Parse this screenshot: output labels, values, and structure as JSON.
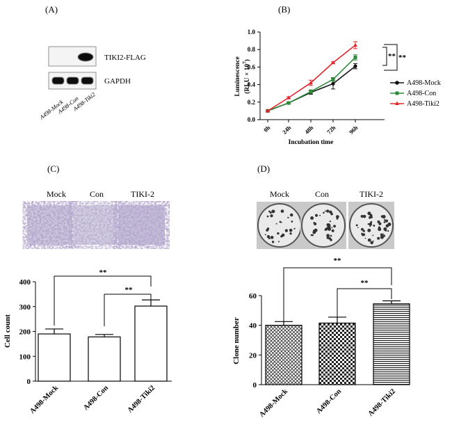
{
  "panels": {
    "A": {
      "label": "(A)",
      "bands": [
        "TIKI2-FLAG",
        "GAPDH"
      ],
      "lanes": [
        "A498-Mock",
        "A498-Con",
        "A498-Tiki2"
      ]
    },
    "B": {
      "label": "(B)"
    },
    "C": {
      "label": "(C)",
      "image_labels": [
        "Mock",
        "Con",
        "TIKI-2"
      ]
    },
    "D": {
      "label": "(D)",
      "image_labels": [
        "Mock",
        "Con",
        "TIKI-2"
      ]
    }
  },
  "chart_data": [
    {
      "id": "B",
      "type": "line",
      "xlabel": "Incubation time",
      "ylabel": "Luminescence",
      "ylabel2": "(RLU × 10",
      "ylabel_exp": "7",
      "ylabel_end": ")",
      "categories": [
        "0h",
        "24h",
        "48h",
        "72h",
        "96h"
      ],
      "ylim": [
        0,
        1.0
      ],
      "yticks": [
        "0.0",
        "0.2",
        "0.4",
        "0.6",
        "0.8",
        "1.0"
      ],
      "series": [
        {
          "name": "A498-Mock",
          "color": "#111111",
          "marker": "circle",
          "values": [
            0.1,
            0.19,
            0.31,
            0.41,
            0.61
          ],
          "errors": [
            0.01,
            0.01,
            0.02,
            0.06,
            0.03
          ]
        },
        {
          "name": "A498-Con",
          "color": "#2e8b3a",
          "marker": "square",
          "values": [
            0.1,
            0.19,
            0.32,
            0.46,
            0.71
          ],
          "errors": [
            0.01,
            0.01,
            0.02,
            0.02,
            0.03
          ]
        },
        {
          "name": "A498-Tiki2",
          "color": "#e0262b",
          "marker": "triangle",
          "values": [
            0.1,
            0.25,
            0.42,
            0.65,
            0.85
          ],
          "errors": [
            0.01,
            0.01,
            0.03,
            0.01,
            0.04
          ]
        }
      ],
      "significance": [
        "**",
        "**"
      ]
    },
    {
      "id": "C",
      "type": "bar",
      "ylabel": "Cell count",
      "categories": [
        "A498-Mock",
        "A498-Con",
        "A498-Tiki2"
      ],
      "values": [
        190,
        178,
        302
      ],
      "errors": [
        20,
        10,
        25
      ],
      "ylim": [
        0,
        400
      ],
      "yticks": [
        "0",
        "100",
        "200",
        "300",
        "400"
      ],
      "significance": [
        "**",
        "**"
      ]
    },
    {
      "id": "D",
      "type": "bar",
      "ylabel": "Clone number",
      "categories": [
        "A498-Mock",
        "A498-Con",
        "A498-Tiki2"
      ],
      "values": [
        40,
        41.5,
        54.5
      ],
      "errors": [
        2.5,
        4,
        2
      ],
      "ylim": [
        0,
        60
      ],
      "yticks": [
        "0",
        "20",
        "40",
        "60"
      ],
      "significance": [
        "**",
        "**"
      ]
    }
  ]
}
